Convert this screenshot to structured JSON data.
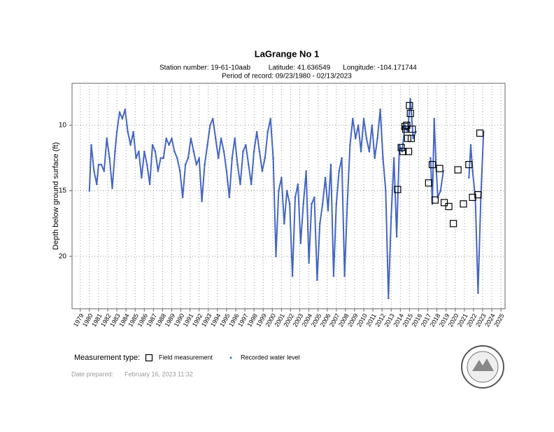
{
  "chart_data": {
    "type": "scatter",
    "title": "LaGrange No 1",
    "subtitle": [
      "Station number: 19-61-10aab",
      "Latitude: 41.636549",
      "Longitude: -104.171744"
    ],
    "period": "Period of record: 09/23/1980 - 02/13/2023",
    "y_label": "Depth below ground surface (ft)",
    "legend_title": "Measurement type:",
    "xlim": [
      1978.1,
      2025.45
    ],
    "xticks": [
      1979,
      1980,
      1981,
      1982,
      1983,
      1984,
      1985,
      1986,
      1987,
      1988,
      1989,
      1990,
      1991,
      1992,
      1993,
      1994,
      1995,
      1996,
      1997,
      1998,
      1999,
      2000,
      2001,
      2002,
      2003,
      2004,
      2005,
      2006,
      2007,
      2008,
      2009,
      2010,
      2011,
      2012,
      2013,
      2014,
      2015,
      2016,
      2017,
      2018,
      2019,
      2020,
      2021,
      2022,
      2023,
      2024,
      2025
    ],
    "ylim": [
      24.0,
      6.8
    ],
    "yticks": [
      10,
      15,
      20
    ],
    "grid": true,
    "series": [
      {
        "name": "Field measurement",
        "color": "#000000",
        "marker": "square",
        "x": [
          2013.7,
          2014.1,
          2014.3,
          2014.5,
          2014.6,
          2014.7,
          2014.8,
          2014.9,
          2015.0,
          2015.1,
          2015.2,
          2015.3,
          2017.1,
          2017.5,
          2017.8,
          2018.3,
          2018.8,
          2019.3,
          2019.8,
          2020.3,
          2020.9,
          2021.5,
          2021.9,
          2022.5,
          2022.7
        ],
        "values": [
          14.9,
          11.7,
          12.0,
          10.1,
          10.3,
          10.0,
          11.0,
          12.0,
          8.5,
          9.1,
          11.0,
          10.3,
          14.4,
          13.0,
          15.7,
          13.3,
          15.9,
          16.2,
          17.5,
          13.4,
          16.0,
          13.0,
          15.5,
          15.3,
          10.6
        ]
      },
      {
        "name": "Recorded water level",
        "color": "#4466c4",
        "marker": "dot",
        "x": [
          1980.0,
          1980.2,
          1980.5,
          1980.8,
          1981.0,
          1981.3,
          1981.6,
          1981.9,
          1982.2,
          1982.5,
          1982.8,
          1983.0,
          1983.3,
          1983.6,
          1983.9,
          1984.2,
          1984.5,
          1984.8,
          1985.1,
          1985.4,
          1985.7,
          1986.0,
          1986.3,
          1986.6,
          1986.9,
          1987.2,
          1987.5,
          1987.8,
          1988.1,
          1988.4,
          1988.7,
          1989.0,
          1989.3,
          1989.6,
          1989.9,
          1990.2,
          1990.5,
          1990.8,
          1991.1,
          1991.4,
          1991.7,
          1992.0,
          1992.3,
          1992.6,
          1992.9,
          1993.2,
          1993.5,
          1993.8,
          1994.1,
          1994.4,
          1994.7,
          1995.0,
          1995.3,
          1995.6,
          1995.9,
          1996.2,
          1996.5,
          1996.8,
          1997.1,
          1997.4,
          1997.7,
          1998.0,
          1998.3,
          1998.6,
          1998.9,
          1999.2,
          1999.5,
          1999.8,
          2000.1,
          2000.4,
          2000.7,
          2001.0,
          2001.3,
          2001.6,
          2001.9,
          2002.2,
          2002.5,
          2002.8,
          2003.1,
          2003.4,
          2003.7,
          2004.0,
          2004.3,
          2004.6,
          2004.9,
          2005.2,
          2005.5,
          2005.8,
          2006.1,
          2006.4,
          2006.7,
          2007.0,
          2007.3,
          2007.6,
          2007.9,
          2008.2,
          2008.5,
          2008.8,
          2009.1,
          2009.4,
          2009.7,
          2010.0,
          2010.3,
          2010.6,
          2010.9,
          2011.2,
          2011.5,
          2011.8,
          2012.1,
          2012.4,
          2012.7,
          2013.0,
          2013.3,
          2013.6,
          2013.9,
          2014.2,
          2014.5,
          2014.8,
          2015.1,
          2015.4,
          2015.7,
          2016.0,
          2017.3,
          2017.5,
          2017.7,
          2017.9,
          2018.1,
          2018.4,
          2018.7,
          2018.9,
          2021.5,
          2021.7,
          2021.9,
          2022.2,
          2022.5,
          2022.8,
          2023.1
        ],
        "values": [
          15.0,
          11.5,
          13.5,
          14.5,
          13.0,
          13.0,
          13.5,
          11.0,
          12.5,
          14.8,
          12.0,
          10.5,
          9.0,
          9.5,
          8.8,
          10.5,
          11.5,
          10.5,
          12.5,
          12.0,
          14.0,
          12.0,
          13.0,
          14.5,
          11.5,
          12.0,
          13.5,
          12.5,
          12.5,
          11.0,
          11.5,
          11.0,
          12.0,
          12.5,
          13.5,
          15.5,
          13.0,
          12.5,
          11.0,
          12.0,
          13.0,
          12.5,
          15.8,
          13.0,
          11.5,
          10.0,
          9.5,
          11.0,
          12.5,
          11.0,
          12.0,
          13.5,
          15.5,
          12.5,
          11.0,
          13.0,
          14.5,
          12.0,
          11.5,
          13.0,
          14.5,
          12.0,
          10.5,
          12.0,
          13.5,
          12.5,
          10.5,
          9.5,
          12.5,
          20.0,
          15.0,
          14.0,
          17.5,
          15.0,
          16.0,
          21.5,
          15.5,
          14.5,
          19.0,
          16.0,
          13.5,
          20.5,
          16.0,
          15.5,
          21.8,
          17.5,
          16.0,
          14.0,
          16.5,
          13.0,
          21.5,
          16.0,
          13.5,
          12.5,
          21.5,
          16.0,
          11.5,
          9.5,
          11.0,
          10.0,
          12.0,
          9.5,
          11.0,
          12.0,
          10.0,
          12.5,
          11.0,
          8.8,
          12.5,
          15.0,
          23.2,
          17.0,
          12.5,
          18.5,
          11.5,
          12.0,
          10.0,
          10.5,
          8.0,
          11.0,
          10.5,
          null,
          12.5,
          16.0,
          9.5,
          13.0,
          15.5,
          15.0,
          13.5,
          null,
          14.0,
          11.5,
          13.5,
          15.5,
          22.8,
          15.5,
          10.5
        ]
      }
    ]
  },
  "footer": {
    "label": "Date prepared:",
    "date": "February 16, 2023 11:32"
  }
}
